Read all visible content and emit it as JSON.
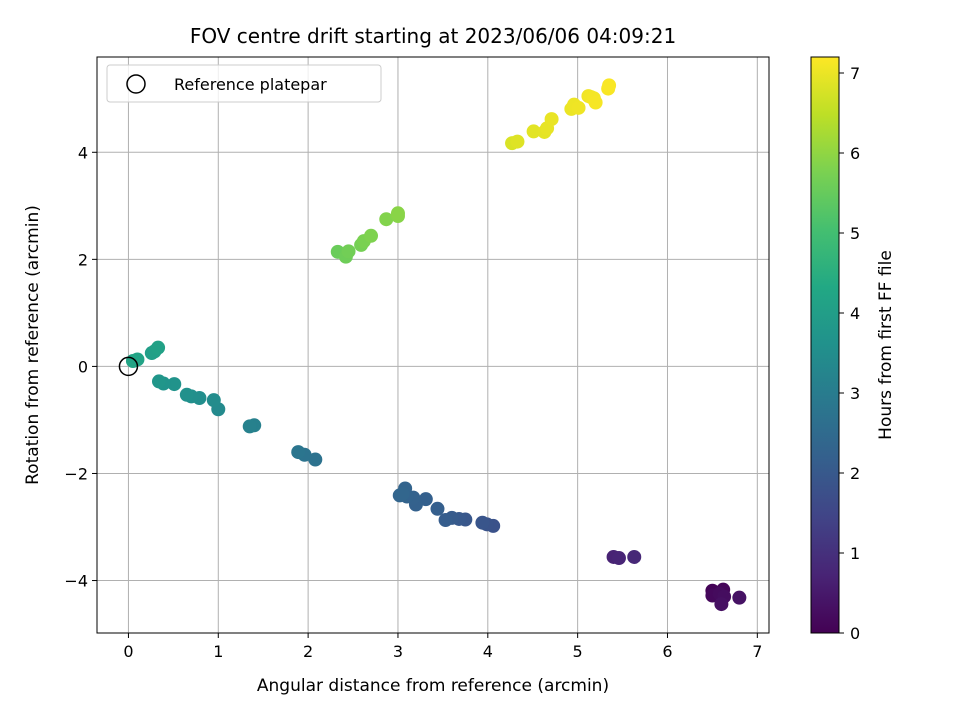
{
  "chart_data": {
    "type": "scatter",
    "title": "FOV centre drift starting at 2023/06/06 04:09:21",
    "xlabel": "Angular distance from reference (arcmin)",
    "ylabel": "Rotation from reference (arcmin)",
    "xlim": [
      -0.35,
      7.13
    ],
    "ylim": [
      -4.98,
      5.78
    ],
    "xticks": [
      0,
      1,
      2,
      3,
      4,
      5,
      6,
      7
    ],
    "yticks": [
      -4,
      -2,
      0,
      2,
      4
    ],
    "xtick_labels": [
      "0",
      "1",
      "2",
      "3",
      "4",
      "5",
      "6",
      "7"
    ],
    "ytick_labels": [
      "−4",
      "−2",
      "0",
      "2",
      "4"
    ],
    "grid": true,
    "legend": {
      "position": "top-left",
      "entries": [
        "Reference platepar"
      ]
    },
    "reference_point": {
      "x": 0,
      "y": 0,
      "label": "Reference platepar"
    },
    "colorbar": {
      "label": "Hours from first FF file",
      "colormap": "viridis",
      "range": [
        0,
        7.2
      ],
      "ticks": [
        0,
        1,
        2,
        3,
        4,
        5,
        6,
        7
      ],
      "tick_labels": [
        "0",
        "1",
        "2",
        "3",
        "4",
        "5",
        "6",
        "7"
      ]
    },
    "points": [
      [
        6.5,
        -4.19,
        0.05
      ],
      [
        6.62,
        -4.17,
        0.1
      ],
      [
        6.5,
        -4.28,
        0.15
      ],
      [
        6.58,
        -4.25,
        0.2
      ],
      [
        6.63,
        -4.3,
        0.25
      ],
      [
        6.6,
        -4.44,
        0.3
      ],
      [
        6.8,
        -4.32,
        0.35
      ],
      [
        5.4,
        -3.56,
        0.7
      ],
      [
        5.46,
        -3.58,
        0.75
      ],
      [
        5.63,
        -3.56,
        0.8
      ],
      [
        4.06,
        -2.98,
        1.8
      ],
      [
        3.99,
        -2.95,
        1.85
      ],
      [
        3.94,
        -2.92,
        1.9
      ],
      [
        3.75,
        -2.86,
        1.95
      ],
      [
        3.68,
        -2.85,
        2.0
      ],
      [
        3.6,
        -2.83,
        2.05
      ],
      [
        3.53,
        -2.87,
        2.1
      ],
      [
        3.44,
        -2.66,
        2.15
      ],
      [
        3.31,
        -2.48,
        2.2
      ],
      [
        3.2,
        -2.58,
        2.22
      ],
      [
        3.17,
        -2.45,
        2.25
      ],
      [
        3.1,
        -2.43,
        2.28
      ],
      [
        3.08,
        -2.28,
        2.3
      ],
      [
        3.02,
        -2.41,
        2.32
      ],
      [
        3.05,
        -2.38,
        2.35
      ],
      [
        2.08,
        -1.74,
        2.7
      ],
      [
        1.96,
        -1.65,
        2.75
      ],
      [
        1.89,
        -1.6,
        2.8
      ],
      [
        1.4,
        -1.1,
        3.1
      ],
      [
        1.35,
        -1.12,
        3.15
      ],
      [
        1.0,
        -0.8,
        3.4
      ],
      [
        0.95,
        -0.63,
        3.45
      ],
      [
        0.79,
        -0.59,
        3.5
      ],
      [
        0.7,
        -0.56,
        3.55
      ],
      [
        0.65,
        -0.53,
        3.6
      ],
      [
        0.51,
        -0.33,
        3.65
      ],
      [
        0.39,
        -0.32,
        3.7
      ],
      [
        0.34,
        -0.28,
        3.75
      ],
      [
        0.26,
        0.25,
        4.0
      ],
      [
        0.29,
        0.28,
        4.05
      ],
      [
        0.33,
        0.35,
        4.1
      ],
      [
        0.1,
        0.13,
        4.15
      ],
      [
        0.05,
        0.1,
        4.2
      ],
      [
        2.33,
        2.14,
        5.55
      ],
      [
        2.42,
        2.05,
        5.6
      ],
      [
        2.45,
        2.15,
        5.65
      ],
      [
        2.59,
        2.27,
        5.7
      ],
      [
        2.62,
        2.34,
        5.75
      ],
      [
        2.7,
        2.44,
        5.8
      ],
      [
        2.87,
        2.75,
        5.85
      ],
      [
        3.0,
        2.81,
        5.9
      ],
      [
        3.0,
        2.86,
        5.92
      ],
      [
        4.27,
        4.17,
        6.8
      ],
      [
        4.33,
        4.2,
        6.85
      ],
      [
        4.51,
        4.39,
        6.9
      ],
      [
        4.63,
        4.38,
        6.92
      ],
      [
        4.66,
        4.45,
        6.95
      ],
      [
        4.71,
        4.62,
        6.97
      ],
      [
        4.93,
        4.81,
        7.0
      ],
      [
        4.96,
        4.89,
        7.02
      ],
      [
        5.01,
        4.83,
        7.04
      ],
      [
        5.12,
        5.05,
        7.06
      ],
      [
        5.15,
        5.03,
        7.08
      ],
      [
        5.18,
        5.01,
        7.1
      ],
      [
        5.2,
        4.93,
        7.12
      ],
      [
        5.34,
        5.19,
        7.14
      ],
      [
        5.35,
        5.25,
        7.16
      ]
    ]
  }
}
